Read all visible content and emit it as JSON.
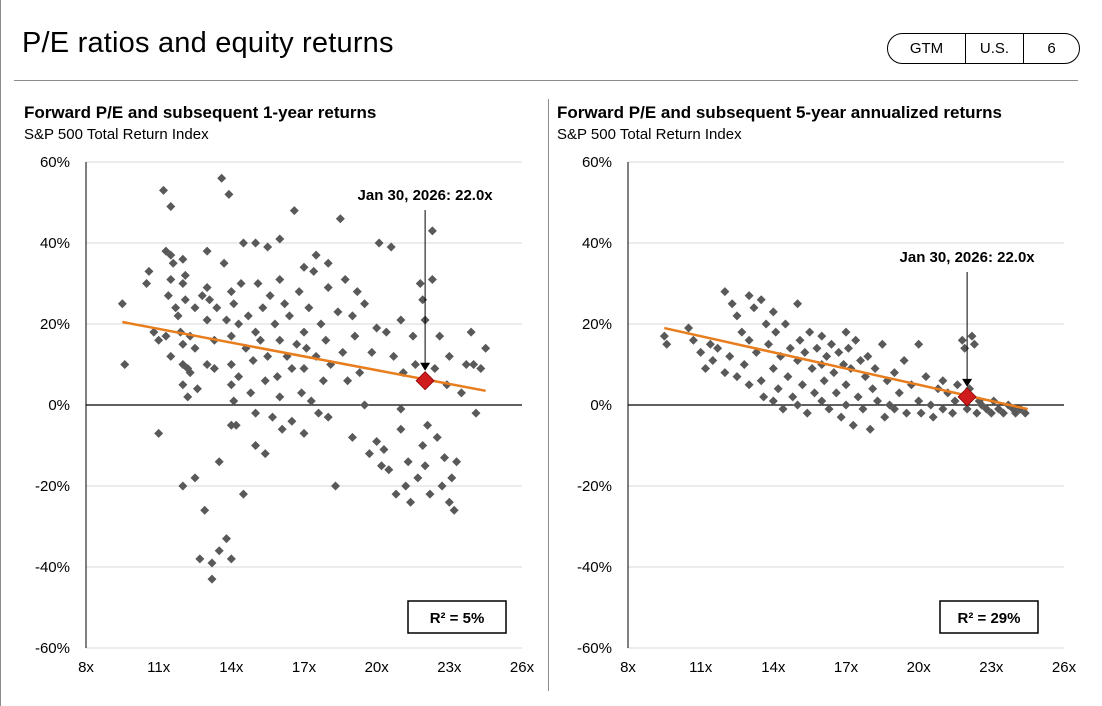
{
  "header": {
    "title": "P/E ratios and equity returns",
    "badge": {
      "seg1": "GTM",
      "seg2": "U.S.",
      "seg3": "6"
    }
  },
  "colors": {
    "points": "#595959",
    "trend": "#e87d1e",
    "marker": "#d01c1c",
    "grid": "#d9d9d9"
  },
  "chart_data": [
    {
      "type": "scatter",
      "title": "Forward P/E and subsequent 1-year returns",
      "subtitle": "S&P 500 Total Return Index",
      "x_ticks": [
        "8x",
        "11x",
        "14x",
        "17x",
        "20x",
        "23x",
        "26x"
      ],
      "y_ticks": [
        "60%",
        "40%",
        "20%",
        "0%",
        "-20%",
        "-40%",
        "-60%"
      ],
      "xlim": [
        8,
        26
      ],
      "ylim": [
        -60,
        60
      ],
      "grid": true,
      "annotation": {
        "text": "Jan 30, 2026:  22.0x",
        "x": 22.0,
        "y": 6
      },
      "r_squared": "R² =  5%",
      "trendline": {
        "start": [
          9.5,
          20.5
        ],
        "end": [
          24.5,
          3.5
        ]
      },
      "points": [
        [
          9.5,
          25
        ],
        [
          9.6,
          10
        ],
        [
          10.5,
          30
        ],
        [
          10.6,
          33
        ],
        [
          10.8,
          18
        ],
        [
          11,
          16
        ],
        [
          11.3,
          17
        ],
        [
          11,
          -7
        ],
        [
          11.2,
          53
        ],
        [
          11.3,
          38
        ],
        [
          11.4,
          27
        ],
        [
          11.5,
          12
        ],
        [
          11.5,
          31
        ],
        [
          11.5,
          49
        ],
        [
          11.5,
          37
        ],
        [
          11.6,
          35
        ],
        [
          11.7,
          24
        ],
        [
          11.8,
          22
        ],
        [
          11.9,
          18
        ],
        [
          12,
          36
        ],
        [
          12,
          30
        ],
        [
          12,
          15
        ],
        [
          12,
          10
        ],
        [
          12,
          5
        ],
        [
          12,
          -20
        ],
        [
          12.1,
          26
        ],
        [
          12.1,
          32
        ],
        [
          12.2,
          9
        ],
        [
          12.2,
          2
        ],
        [
          12.3,
          17
        ],
        [
          12.3,
          8
        ],
        [
          12.5,
          -18
        ],
        [
          12.5,
          24
        ],
        [
          12.5,
          14
        ],
        [
          12.6,
          4
        ],
        [
          12.7,
          -38
        ],
        [
          12.8,
          27
        ],
        [
          12.9,
          -26
        ],
        [
          13,
          21
        ],
        [
          13,
          10
        ],
        [
          13,
          38
        ],
        [
          13,
          29
        ],
        [
          13.1,
          26
        ],
        [
          13.2,
          -39
        ],
        [
          13.2,
          -43
        ],
        [
          13.3,
          16
        ],
        [
          13.3,
          9
        ],
        [
          13.4,
          24
        ],
        [
          13.5,
          -36
        ],
        [
          13.5,
          -14
        ],
        [
          13.6,
          56
        ],
        [
          13.7,
          35
        ],
        [
          13.8,
          -33
        ],
        [
          13.8,
          21
        ],
        [
          13.9,
          52
        ],
        [
          14,
          28
        ],
        [
          14,
          17
        ],
        [
          14,
          10
        ],
        [
          14,
          5
        ],
        [
          14,
          -5
        ],
        [
          14,
          -38
        ],
        [
          14.1,
          25
        ],
        [
          14.1,
          1
        ],
        [
          14.2,
          -5
        ],
        [
          14.3,
          20
        ],
        [
          14.3,
          7
        ],
        [
          14.4,
          30
        ],
        [
          14.5,
          40
        ],
        [
          14.5,
          -22
        ],
        [
          14.6,
          14
        ],
        [
          14.7,
          22
        ],
        [
          14.8,
          3
        ],
        [
          14.9,
          11
        ],
        [
          15,
          -2
        ],
        [
          15,
          40
        ],
        [
          15,
          18
        ],
        [
          15,
          -10
        ],
        [
          15.1,
          30
        ],
        [
          15.2,
          16
        ],
        [
          15.3,
          24
        ],
        [
          15.4,
          6
        ],
        [
          15.4,
          -12
        ],
        [
          15.5,
          39
        ],
        [
          15.5,
          12
        ],
        [
          15.6,
          27
        ],
        [
          15.7,
          -3
        ],
        [
          15.8,
          20
        ],
        [
          15.9,
          7
        ],
        [
          16,
          31
        ],
        [
          16,
          41
        ],
        [
          16,
          2
        ],
        [
          16,
          16
        ],
        [
          16.1,
          -6
        ],
        [
          16.2,
          25
        ],
        [
          16.3,
          12
        ],
        [
          16.4,
          22
        ],
        [
          16.5,
          -4
        ],
        [
          16.5,
          9
        ],
        [
          16.6,
          48
        ],
        [
          16.7,
          15
        ],
        [
          16.8,
          28
        ],
        [
          16.9,
          3
        ],
        [
          17,
          34
        ],
        [
          17,
          18
        ],
        [
          17,
          -7
        ],
        [
          17,
          9
        ],
        [
          17.1,
          14
        ],
        [
          17.2,
          24
        ],
        [
          17.3,
          1
        ],
        [
          17.4,
          33
        ],
        [
          17.5,
          37
        ],
        [
          17.5,
          12
        ],
        [
          17.6,
          -2
        ],
        [
          17.7,
          20
        ],
        [
          17.8,
          6
        ],
        [
          17.9,
          16
        ],
        [
          18,
          29
        ],
        [
          18,
          -3
        ],
        [
          18,
          35
        ],
        [
          18.1,
          10
        ],
        [
          18.3,
          -20
        ],
        [
          18.4,
          23
        ],
        [
          18.5,
          46
        ],
        [
          18.6,
          13
        ],
        [
          18.7,
          31
        ],
        [
          18.8,
          6
        ],
        [
          19,
          22
        ],
        [
          19,
          -8
        ],
        [
          19.1,
          17
        ],
        [
          19.2,
          28
        ],
        [
          19.3,
          8
        ],
        [
          19.5,
          25
        ],
        [
          19.5,
          0
        ],
        [
          19.7,
          -12
        ],
        [
          19.8,
          13
        ],
        [
          20,
          19
        ],
        [
          20,
          -9
        ],
        [
          20.1,
          40
        ],
        [
          20.2,
          -15
        ],
        [
          20.3,
          -11
        ],
        [
          20.4,
          18
        ],
        [
          20.5,
          -16
        ],
        [
          20.6,
          39
        ],
        [
          20.7,
          12
        ],
        [
          20.8,
          -22
        ],
        [
          21,
          -1
        ],
        [
          21,
          21
        ],
        [
          21,
          -6
        ],
        [
          21.1,
          8
        ],
        [
          21.2,
          -20
        ],
        [
          21.3,
          -14
        ],
        [
          21.4,
          -24
        ],
        [
          21.5,
          17
        ],
        [
          21.6,
          10
        ],
        [
          21.7,
          -18
        ],
        [
          21.8,
          30
        ],
        [
          21.9,
          26
        ],
        [
          21.9,
          -10
        ],
        [
          22,
          -15
        ],
        [
          22,
          21
        ],
        [
          22.1,
          -5
        ],
        [
          22.2,
          -22
        ],
        [
          22.3,
          43
        ],
        [
          22.3,
          31
        ],
        [
          22.4,
          9
        ],
        [
          22.5,
          -8
        ],
        [
          22.6,
          17
        ],
        [
          22.7,
          -20
        ],
        [
          22.8,
          -13
        ],
        [
          22.9,
          5
        ],
        [
          23,
          12
        ],
        [
          23,
          -24
        ],
        [
          23.1,
          -18
        ],
        [
          23.2,
          -26
        ],
        [
          23.3,
          -14
        ],
        [
          23.5,
          3
        ],
        [
          23.7,
          10
        ],
        [
          23.9,
          18
        ],
        [
          24,
          10
        ],
        [
          24.1,
          -2
        ],
        [
          24.3,
          9
        ],
        [
          24.5,
          14
        ]
      ]
    },
    {
      "type": "scatter",
      "title": "Forward P/E and subsequent 5-year annualized returns",
      "subtitle": "S&P 500 Total Return Index",
      "x_ticks": [
        "8x",
        "11x",
        "14x",
        "17x",
        "20x",
        "23x",
        "26x"
      ],
      "y_ticks": [
        "60%",
        "40%",
        "20%",
        "0%",
        "-20%",
        "-40%",
        "-60%"
      ],
      "xlim": [
        8,
        26
      ],
      "ylim": [
        -60,
        60
      ],
      "grid": true,
      "annotation": {
        "text": "Jan 30, 2026:  22.0x",
        "x": 22.0,
        "y": 2
      },
      "r_squared": "R² =  29%",
      "trendline": {
        "start": [
          9.5,
          19
        ],
        "end": [
          24.5,
          -1
        ]
      },
      "points": [
        [
          9.5,
          17
        ],
        [
          9.6,
          15
        ],
        [
          10.5,
          19
        ],
        [
          10.7,
          16
        ],
        [
          11,
          13
        ],
        [
          11.2,
          9
        ],
        [
          11.4,
          15
        ],
        [
          11.5,
          11
        ],
        [
          11.7,
          14
        ],
        [
          12,
          28
        ],
        [
          12,
          8
        ],
        [
          12.2,
          12
        ],
        [
          12.3,
          25
        ],
        [
          12.5,
          7
        ],
        [
          12.5,
          22
        ],
        [
          12.7,
          18
        ],
        [
          12.8,
          10
        ],
        [
          13,
          27
        ],
        [
          13,
          5
        ],
        [
          13,
          16
        ],
        [
          13.2,
          24
        ],
        [
          13.3,
          13
        ],
        [
          13.5,
          6
        ],
        [
          13.5,
          26
        ],
        [
          13.6,
          2
        ],
        [
          13.7,
          20
        ],
        [
          13.8,
          15
        ],
        [
          14,
          1
        ],
        [
          14,
          9
        ],
        [
          14,
          23
        ],
        [
          14.1,
          18
        ],
        [
          14.2,
          4
        ],
        [
          14.3,
          12
        ],
        [
          14.4,
          -1
        ],
        [
          14.5,
          20
        ],
        [
          14.6,
          7
        ],
        [
          14.7,
          14
        ],
        [
          14.8,
          2
        ],
        [
          15,
          25
        ],
        [
          15,
          11
        ],
        [
          15,
          0
        ],
        [
          15.1,
          16
        ],
        [
          15.2,
          5
        ],
        [
          15.3,
          13
        ],
        [
          15.4,
          -2
        ],
        [
          15.5,
          18
        ],
        [
          15.6,
          9
        ],
        [
          15.7,
          3
        ],
        [
          15.8,
          14
        ],
        [
          16,
          10
        ],
        [
          16,
          1
        ],
        [
          16,
          17
        ],
        [
          16.1,
          6
        ],
        [
          16.2,
          12
        ],
        [
          16.3,
          -1
        ],
        [
          16.4,
          15
        ],
        [
          16.5,
          8
        ],
        [
          16.6,
          3
        ],
        [
          16.7,
          13
        ],
        [
          16.8,
          -3
        ],
        [
          16.9,
          10
        ],
        [
          17,
          18
        ],
        [
          17,
          5
        ],
        [
          17,
          0
        ],
        [
          17.1,
          14
        ],
        [
          17.2,
          9
        ],
        [
          17.3,
          -5
        ],
        [
          17.4,
          16
        ],
        [
          17.5,
          2
        ],
        [
          17.6,
          11
        ],
        [
          17.7,
          -1
        ],
        [
          17.8,
          7
        ],
        [
          17.9,
          12
        ],
        [
          18,
          -6
        ],
        [
          18.1,
          4
        ],
        [
          18.2,
          9
        ],
        [
          18.3,
          1
        ],
        [
          18.5,
          15
        ],
        [
          18.6,
          -3
        ],
        [
          18.7,
          6
        ],
        [
          18.8,
          0
        ],
        [
          19,
          8
        ],
        [
          19,
          -1
        ],
        [
          19.2,
          3
        ],
        [
          19.4,
          11
        ],
        [
          19.5,
          -2
        ],
        [
          19.7,
          5
        ],
        [
          20,
          15
        ],
        [
          20,
          1
        ],
        [
          20.1,
          -2
        ],
        [
          20.3,
          7
        ],
        [
          20.5,
          0
        ],
        [
          20.6,
          -3
        ],
        [
          20.8,
          4
        ],
        [
          21,
          6
        ],
        [
          21,
          -1
        ],
        [
          21.2,
          3
        ],
        [
          21.4,
          -2
        ],
        [
          21.5,
          1
        ],
        [
          21.6,
          5
        ],
        [
          21.8,
          16
        ],
        [
          21.9,
          14
        ],
        [
          22,
          -1
        ],
        [
          22.1,
          4
        ],
        [
          22.2,
          17
        ],
        [
          22.3,
          15
        ],
        [
          22.4,
          -2
        ],
        [
          22.5,
          1
        ],
        [
          22.6,
          0
        ],
        [
          22.8,
          -1
        ],
        [
          23,
          -2
        ],
        [
          23.1,
          1
        ],
        [
          23.3,
          -1
        ],
        [
          23.5,
          -2
        ],
        [
          23.7,
          0
        ],
        [
          23.9,
          -1
        ],
        [
          24,
          -2
        ],
        [
          24.2,
          -1
        ],
        [
          24.4,
          -2
        ]
      ]
    }
  ]
}
